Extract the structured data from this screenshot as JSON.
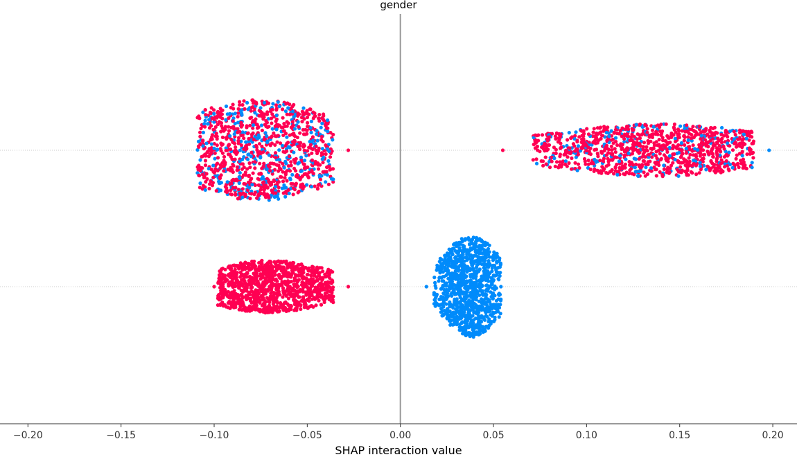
{
  "chart_data": {
    "type": "scatter",
    "subtype": "shap-beeswarm-interaction",
    "title": "gender",
    "xlabel": "SHAP interaction value",
    "ylabel": "",
    "xlim": [
      -0.215,
      0.213
    ],
    "xticks": [
      -0.2,
      -0.15,
      -0.1,
      -0.05,
      0.0,
      0.05,
      0.1,
      0.15,
      0.2
    ],
    "xtick_labels": [
      "−0.20",
      "−0.15",
      "−0.10",
      "−0.05",
      "0.00",
      "0.05",
      "0.10",
      "0.15",
      "0.20"
    ],
    "zero_line": 0.0,
    "grid": false,
    "legend": "none",
    "colors": {
      "high": "#ff0052",
      "low": "#008bfb",
      "zero_line": "#999999",
      "row_line": "#cccccc"
    },
    "rows": [
      {
        "clusters": [
          {
            "center": -0.076,
            "range": [
              -0.109,
              -0.036
            ],
            "density_width": 0.028,
            "max_spread": 73,
            "mix": 0.72,
            "outliers": [
              {
                "x": -0.028,
                "color": "high"
              }
            ]
          },
          {
            "center": 0.138,
            "range": [
              0.071,
              0.19
            ],
            "density_width": 0.04,
            "max_spread": 38,
            "mix": 0.82,
            "outliers": [
              {
                "x": 0.055,
                "color": "high"
              },
              {
                "x": 0.198,
                "color": "low"
              }
            ]
          }
        ]
      },
      {
        "clusters": [
          {
            "center": -0.07,
            "range": [
              -0.098,
              -0.036
            ],
            "density_width": 0.022,
            "max_spread": 38,
            "mix": 1.0,
            "outliers": [
              {
                "x": -0.1,
                "color": "high"
              },
              {
                "x": -0.028,
                "color": "high"
              }
            ]
          },
          {
            "center": 0.038,
            "range": [
              0.018,
              0.054
            ],
            "density_width": 0.01,
            "max_spread": 73,
            "mix": 0.0,
            "outliers": [
              {
                "x": 0.014,
                "color": "low"
              },
              {
                "x": 0.054,
                "color": "low"
              }
            ]
          }
        ]
      }
    ]
  }
}
